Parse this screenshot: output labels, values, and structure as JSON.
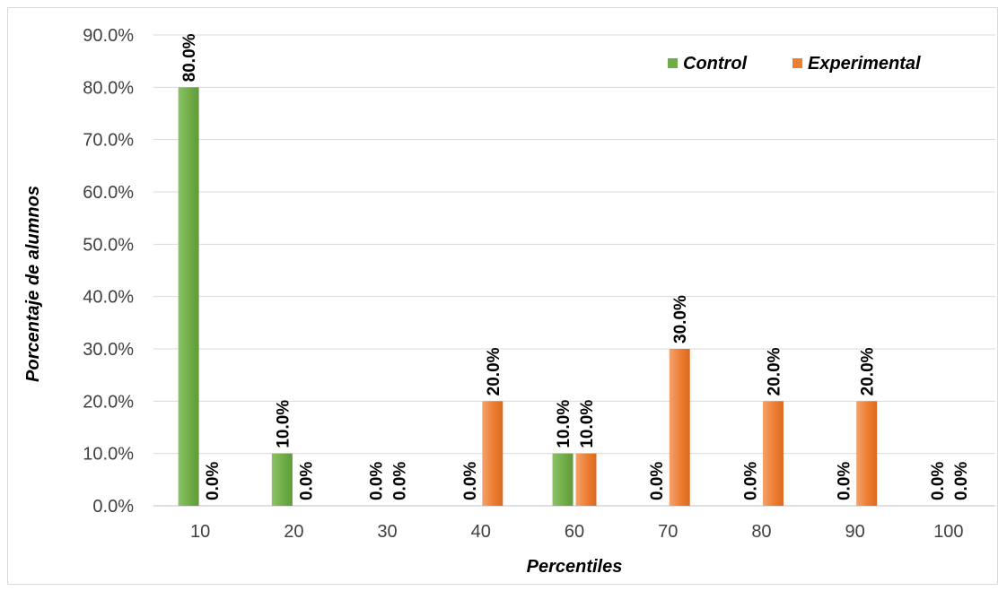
{
  "chart_data": {
    "type": "bar",
    "title": "",
    "xlabel": "Percentiles",
    "ylabel": "Porcentaje de alumnos",
    "categories": [
      "10",
      "20",
      "30",
      "40",
      "60",
      "70",
      "80",
      "90",
      "100"
    ],
    "series": [
      {
        "name": "Control",
        "color": "#70ad47",
        "values": [
          80.0,
          10.0,
          0.0,
          0.0,
          10.0,
          0.0,
          0.0,
          0.0,
          0.0
        ]
      },
      {
        "name": "Experimental",
        "color": "#ed7d31",
        "values": [
          0.0,
          0.0,
          0.0,
          20.0,
          10.0,
          30.0,
          20.0,
          20.0,
          0.0
        ]
      }
    ],
    "ylim": [
      0,
      90
    ],
    "yticks": [
      "0.0%",
      "10.0%",
      "20.0%",
      "30.0%",
      "40.0%",
      "50.0%",
      "60.0%",
      "70.0%",
      "80.0%",
      "90.0%"
    ],
    "value_format": "percent_1dp",
    "grid": true,
    "legend_position": "top-right"
  }
}
